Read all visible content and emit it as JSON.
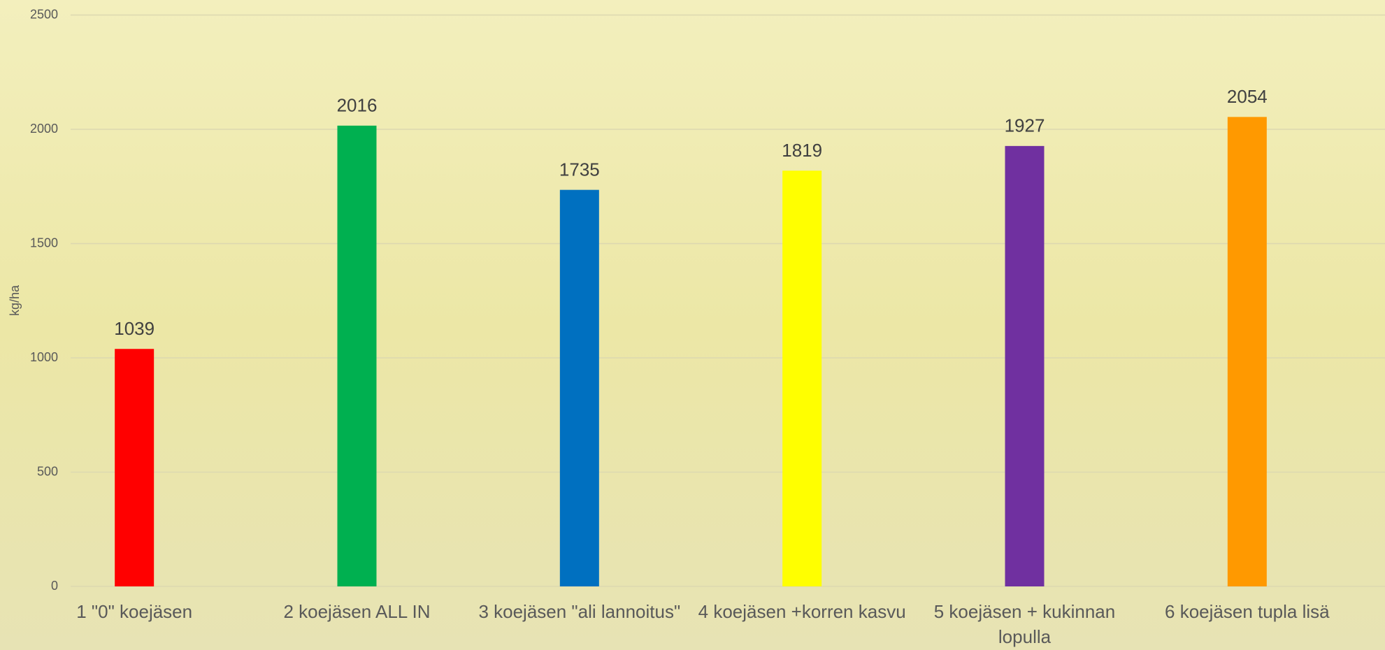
{
  "chart_data": {
    "type": "bar",
    "y_label": "kg/ha",
    "categories": [
      "1 \"0\" koejäsen",
      "2 koejäsen ALL IN",
      "3 koejäsen \"ali lannoitus\"",
      "4 koejäsen +korren kasvu",
      "5 koejäsen + kukinnan lopulla",
      "6 koejäsen tupla lisä"
    ],
    "values": [
      1039,
      2016,
      1735,
      1819,
      1927,
      2054
    ],
    "colors": [
      "#ff0000",
      "#00b050",
      "#0070c0",
      "#ffff00",
      "#7030a0",
      "#ff9900"
    ],
    "ylim": [
      0,
      2500
    ],
    "yticks": [
      0,
      500,
      1000,
      1500,
      2000,
      2500
    ],
    "grid": true
  }
}
